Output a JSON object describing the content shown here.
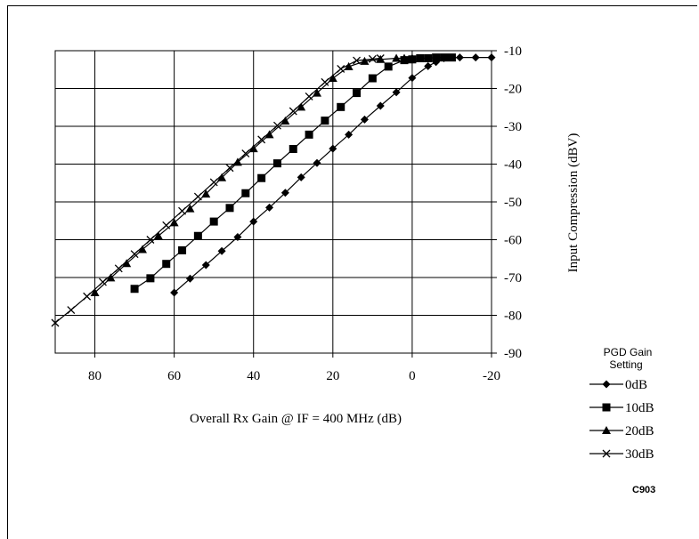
{
  "chart_data": {
    "type": "line",
    "title": "",
    "xlabel": "Overall Rx Gain @ IF = 400 MHz (dB)",
    "ylabel": "Input Compression (dBV)",
    "xlim": [
      90,
      -20
    ],
    "ylim": [
      -90,
      -10
    ],
    "x_ticks": [
      "80",
      "60",
      "40",
      "20",
      "0",
      "-20"
    ],
    "y_ticks": [
      "-10",
      "-20",
      "-30",
      "-40",
      "-50",
      "-60",
      "-70",
      "-80",
      "-90"
    ],
    "grid": true,
    "legend_title": "PGD Gain Setting",
    "legend_placement": "right",
    "series": [
      {
        "name": "0dB",
        "marker": "diamond",
        "x": [
          60,
          56,
          52,
          48,
          44,
          40,
          36,
          32,
          28,
          24,
          20,
          16,
          12,
          8,
          4,
          0,
          -4,
          -6,
          -8,
          -12,
          -16,
          -20
        ],
        "y": [
          -74,
          -70.3,
          -66.7,
          -63,
          -59.3,
          -55.2,
          -51.5,
          -47.6,
          -43.5,
          -39.7,
          -35.9,
          -32.2,
          -28.2,
          -24.6,
          -21,
          -17.2,
          -14.1,
          -13,
          -12,
          -11.8,
          -11.8,
          -11.8
        ]
      },
      {
        "name": "10dB",
        "marker": "square",
        "x": [
          70,
          66,
          62,
          58,
          54,
          50,
          46,
          42,
          38,
          34,
          30,
          26,
          22,
          18,
          14,
          10,
          6,
          2,
          0,
          -2,
          -4,
          -6,
          -8,
          -10
        ],
        "y": [
          -73,
          -70.2,
          -66.4,
          -62.8,
          -59,
          -55.2,
          -51.6,
          -47.7,
          -43.7,
          -39.8,
          -36,
          -32.2,
          -28.5,
          -24.9,
          -21.2,
          -17.3,
          -14.2,
          -12.5,
          -12.3,
          -12,
          -12,
          -11.8,
          -11.8,
          -11.8
        ]
      },
      {
        "name": "20dB",
        "marker": "triangle",
        "x": [
          80,
          76,
          72,
          68,
          64,
          60,
          56,
          52,
          48,
          44,
          40,
          36,
          32,
          28,
          24,
          20,
          16,
          12,
          8,
          4,
          2,
          0
        ],
        "y": [
          -74,
          -70.1,
          -66.3,
          -62.6,
          -59,
          -55.5,
          -51.8,
          -47.9,
          -43.6,
          -39.5,
          -35.9,
          -32.2,
          -28.6,
          -24.9,
          -21.2,
          -17.3,
          -14.2,
          -12.8,
          -12.3,
          -12,
          -12,
          -12
        ]
      },
      {
        "name": "30dB",
        "marker": "x",
        "x": [
          90,
          86,
          82,
          78,
          74,
          70,
          66,
          62,
          58,
          54,
          50,
          46,
          42,
          38,
          34,
          30,
          26,
          22,
          18,
          14,
          10,
          8
        ],
        "y": [
          -82,
          -78.6,
          -75,
          -71.2,
          -67.6,
          -63.8,
          -60,
          -56.2,
          -52.4,
          -48.6,
          -44.8,
          -41,
          -37.2,
          -33.5,
          -29.8,
          -26,
          -22.1,
          -18.3,
          -14.8,
          -12.6,
          -12.2,
          -12
        ]
      }
    ]
  },
  "figure_code": "C903"
}
